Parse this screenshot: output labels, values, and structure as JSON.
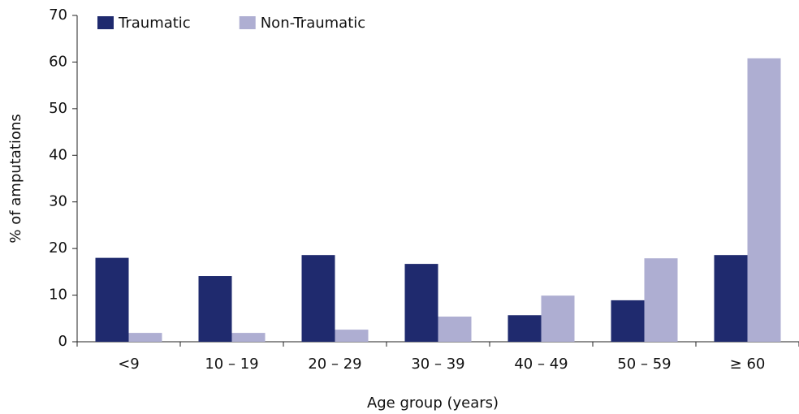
{
  "chart_data": {
    "type": "bar",
    "x_label": "Age group (years)",
    "y_label": "% of amputations",
    "categories": [
      "<9",
      "10 – 19",
      "20 – 29",
      "30 – 39",
      "40 – 49",
      "50 – 59",
      "≥ 60"
    ],
    "series": [
      {
        "name": "Traumatic",
        "color": "#1f2a6e",
        "values": [
          18,
          14.1,
          18.6,
          16.7,
          5.7,
          8.9,
          18.6
        ]
      },
      {
        "name": "Non-Traumatic",
        "color": "#aeaed2",
        "values": [
          1.9,
          1.9,
          2.6,
          5.4,
          9.9,
          17.9,
          60.8
        ]
      }
    ],
    "ylim": [
      0,
      70
    ],
    "yticks": [
      0,
      10,
      20,
      30,
      40,
      50,
      60,
      70
    ],
    "legend": "top-left"
  }
}
